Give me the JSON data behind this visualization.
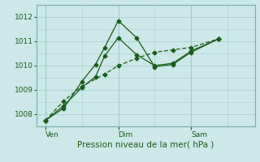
{
  "xlabel": "Pression niveau de la mer( hPa )",
  "background_color": "#cce8e8",
  "grid_color": "#aacfcf",
  "line_color": "#1a5c1a",
  "ylim": [
    1007.5,
    1012.5
  ],
  "xlim": [
    0,
    24
  ],
  "x_ticks": [
    1,
    9,
    17
  ],
  "x_tick_labels": [
    "Ven",
    "Dim",
    "Sam"
  ],
  "x_vlines": [
    1,
    9,
    17
  ],
  "y_ticks": [
    1008,
    1009,
    1010,
    1011,
    1012
  ],
  "series1_x": [
    1,
    3,
    5,
    6.5,
    7.5,
    9,
    11,
    13,
    15,
    17,
    20
  ],
  "series1_y": [
    1007.75,
    1008.25,
    1009.35,
    1010.05,
    1010.75,
    1011.85,
    1011.15,
    1009.95,
    1010.05,
    1010.55,
    1011.1
  ],
  "series2_x": [
    1,
    3,
    5,
    6.5,
    7.5,
    9,
    11,
    13,
    15,
    17,
    20
  ],
  "series2_y": [
    1007.75,
    1008.35,
    1009.1,
    1009.55,
    1010.4,
    1011.15,
    1010.45,
    1010.0,
    1010.1,
    1010.6,
    1011.1
  ],
  "series3_x": [
    1,
    3,
    5,
    7.5,
    9,
    11,
    13,
    15,
    17,
    20
  ],
  "series3_y": [
    1007.75,
    1008.55,
    1009.15,
    1009.65,
    1010.0,
    1010.3,
    1010.55,
    1010.65,
    1010.75,
    1011.1
  ]
}
